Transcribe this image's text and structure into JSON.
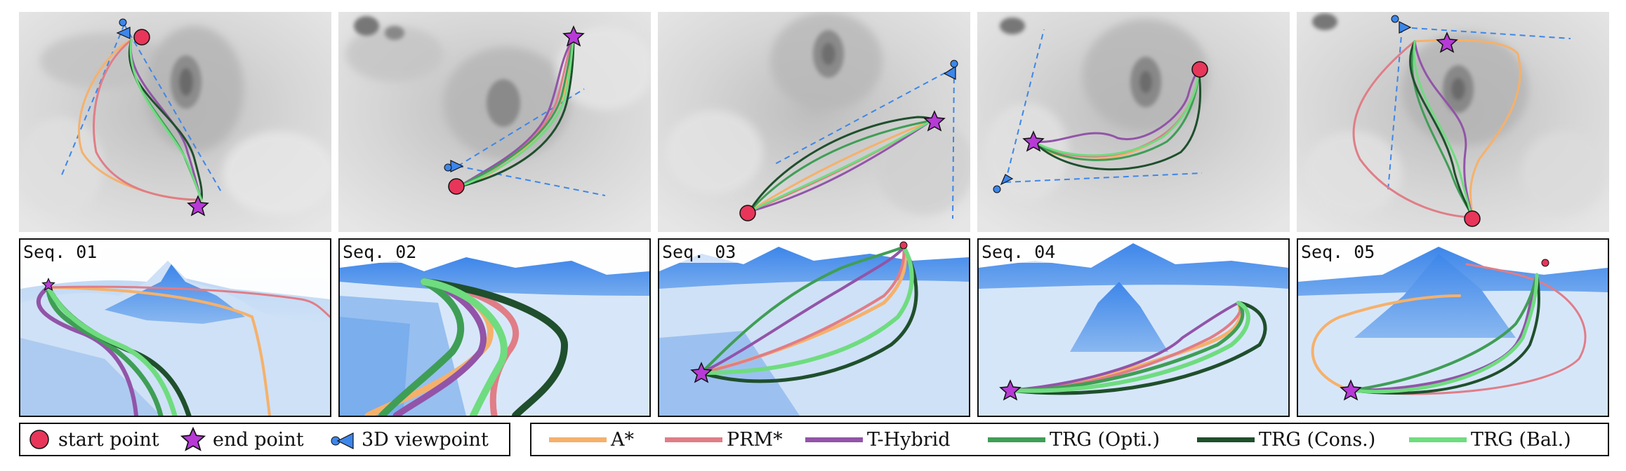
{
  "sequences": [
    {
      "label": "Seq. 01"
    },
    {
      "label": "Seq. 02"
    },
    {
      "label": "Seq. 03"
    },
    {
      "label": "Seq. 04"
    },
    {
      "label": "Seq. 05"
    }
  ],
  "markers_legend": [
    {
      "label": "start point",
      "icon": "start-point-icon",
      "color": "#e8355a"
    },
    {
      "label": "end point",
      "icon": "end-point-icon",
      "color": "#b73ad6"
    },
    {
      "label": "3D viewpoint",
      "icon": "viewpoint-icon",
      "color": "#3d86ea"
    }
  ],
  "methods_legend": [
    {
      "label": "A*",
      "color": "#f5b16b"
    },
    {
      "label": "PRM*",
      "color": "#e07d87"
    },
    {
      "label": "T-Hybrid",
      "color": "#9254a8"
    },
    {
      "label": "TRG (Opti.)",
      "color": "#3f9e55"
    },
    {
      "label": "TRG (Cons.)",
      "color": "#1f4f2c"
    },
    {
      "label": "TRG (Bal.)",
      "color": "#6fdc7f"
    }
  ]
}
